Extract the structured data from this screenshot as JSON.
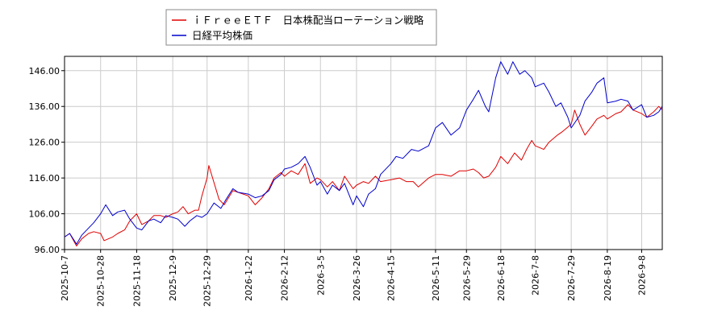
{
  "chart_data": {
    "type": "line",
    "title": "",
    "xlabel": "",
    "ylabel": "",
    "x_range": [
      "2025-10-07",
      "2026-09-20"
    ],
    "ylim": [
      96,
      150
    ],
    "grid": true,
    "legend_position": "top-left",
    "yticks": [
      "96.00",
      "106.00",
      "116.00",
      "126.00",
      "136.00",
      "146.00"
    ],
    "xticks": [
      "2025-10-7",
      "2025-10-28",
      "2025-11-18",
      "2025-12-9",
      "2025-12-29",
      "2026-1-22",
      "2026-2-12",
      "2026-3-5",
      "2026-3-26",
      "2026-4-15",
      "2026-5-11",
      "2026-5-29",
      "2026-6-18",
      "2026-7-8",
      "2026-7-29",
      "2026-8-19",
      "2026-9-8"
    ],
    "series": [
      {
        "name": "ｉＦｒｅｅＥＴＦ　日本株配当ローテーション戦略",
        "color": "#e00000",
        "points": [
          [
            "2025-10-07",
            99.5
          ],
          [
            "2025-10-10",
            100.5
          ],
          [
            "2025-10-14",
            97.0
          ],
          [
            "2025-10-17",
            99.0
          ],
          [
            "2025-10-21",
            100.5
          ],
          [
            "2025-10-24",
            101.0
          ],
          [
            "2025-10-28",
            100.5
          ],
          [
            "2025-10-30",
            98.5
          ],
          [
            "2025-11-04",
            99.5
          ],
          [
            "2025-11-07",
            100.5
          ],
          [
            "2025-11-11",
            101.5
          ],
          [
            "2025-11-14",
            104.0
          ],
          [
            "2025-11-18",
            106.0
          ],
          [
            "2025-11-21",
            103.0
          ],
          [
            "2025-11-25",
            104.0
          ],
          [
            "2025-11-28",
            105.5
          ],
          [
            "2025-12-02",
            105.5
          ],
          [
            "2025-12-05",
            105.0
          ],
          [
            "2025-12-09",
            106.0
          ],
          [
            "2025-12-12",
            106.5
          ],
          [
            "2025-12-15",
            108.0
          ],
          [
            "2025-12-18",
            106.0
          ],
          [
            "2025-12-22",
            107.0
          ],
          [
            "2025-12-24",
            107.0
          ],
          [
            "2025-12-26",
            111.0
          ],
          [
            "2025-12-29",
            116.0
          ],
          [
            "2025-12-30",
            119.5
          ],
          [
            "2026-01-05",
            110.0
          ],
          [
            "2026-01-08",
            108.5
          ],
          [
            "2026-01-13",
            112.5
          ],
          [
            "2026-01-16",
            112.0
          ],
          [
            "2026-01-22",
            111.0
          ],
          [
            "2026-01-26",
            108.5
          ],
          [
            "2026-01-30",
            110.5
          ],
          [
            "2026-02-03",
            113.0
          ],
          [
            "2026-02-06",
            116.0
          ],
          [
            "2026-02-10",
            117.5
          ],
          [
            "2026-02-12",
            116.5
          ],
          [
            "2026-02-16",
            118.0
          ],
          [
            "2026-02-20",
            117.0
          ],
          [
            "2026-02-24",
            120.0
          ],
          [
            "2026-02-27",
            114.5
          ],
          [
            "2026-03-03",
            116.0
          ],
          [
            "2026-03-05",
            115.5
          ],
          [
            "2026-03-09",
            113.5
          ],
          [
            "2026-03-12",
            115.0
          ],
          [
            "2026-03-16",
            112.5
          ],
          [
            "2026-03-19",
            116.5
          ],
          [
            "2026-03-24",
            113.0
          ],
          [
            "2026-03-26",
            114.0
          ],
          [
            "2026-03-30",
            115.0
          ],
          [
            "2026-04-02",
            114.5
          ],
          [
            "2026-04-06",
            116.5
          ],
          [
            "2026-04-09",
            115.0
          ],
          [
            "2026-04-15",
            115.5
          ],
          [
            "2026-04-20",
            116.0
          ],
          [
            "2026-04-24",
            115.0
          ],
          [
            "2026-04-28",
            115.0
          ],
          [
            "2026-05-01",
            113.5
          ],
          [
            "2026-05-07",
            116.0
          ],
          [
            "2026-05-11",
            117.0
          ],
          [
            "2026-05-15",
            117.0
          ],
          [
            "2026-05-20",
            116.5
          ],
          [
            "2026-05-25",
            118.0
          ],
          [
            "2026-05-29",
            118.0
          ],
          [
            "2026-06-02",
            118.5
          ],
          [
            "2026-06-05",
            117.5
          ],
          [
            "2026-06-08",
            116.0
          ],
          [
            "2026-06-11",
            116.5
          ],
          [
            "2026-06-15",
            119.0
          ],
          [
            "2026-06-18",
            122.0
          ],
          [
            "2026-06-22",
            120.0
          ],
          [
            "2026-06-26",
            123.0
          ],
          [
            "2026-06-30",
            121.0
          ],
          [
            "2026-07-03",
            124.0
          ],
          [
            "2026-07-06",
            126.5
          ],
          [
            "2026-07-08",
            125.0
          ],
          [
            "2026-07-13",
            124.0
          ],
          [
            "2026-07-16",
            126.0
          ],
          [
            "2026-07-21",
            128.0
          ],
          [
            "2026-07-24",
            129.0
          ],
          [
            "2026-07-29",
            131.0
          ],
          [
            "2026-07-31",
            135.0
          ],
          [
            "2026-08-03",
            131.0
          ],
          [
            "2026-08-06",
            128.0
          ],
          [
            "2026-08-10",
            130.5
          ],
          [
            "2026-08-13",
            132.5
          ],
          [
            "2026-08-17",
            133.5
          ],
          [
            "2026-08-19",
            132.5
          ],
          [
            "2026-08-24",
            134.0
          ],
          [
            "2026-08-27",
            134.5
          ],
          [
            "2026-08-31",
            136.5
          ],
          [
            "2026-09-03",
            135.0
          ],
          [
            "2026-09-08",
            134.0
          ],
          [
            "2026-09-11",
            133.0
          ],
          [
            "2026-09-15",
            134.5
          ],
          [
            "2026-09-18",
            136.0
          ],
          [
            "2026-09-20",
            135.0
          ]
        ]
      },
      {
        "name": "日経平均株価",
        "color": "#0000cc",
        "points": [
          [
            "2025-10-07",
            99.5
          ],
          [
            "2025-10-10",
            100.5
          ],
          [
            "2025-10-14",
            97.5
          ],
          [
            "2025-10-17",
            100.0
          ],
          [
            "2025-10-21",
            102.0
          ],
          [
            "2025-10-24",
            103.5
          ],
          [
            "2025-10-28",
            106.0
          ],
          [
            "2025-10-31",
            108.5
          ],
          [
            "2025-11-04",
            105.5
          ],
          [
            "2025-11-07",
            106.5
          ],
          [
            "2025-11-11",
            107.0
          ],
          [
            "2025-11-14",
            104.5
          ],
          [
            "2025-11-18",
            102.0
          ],
          [
            "2025-11-21",
            101.5
          ],
          [
            "2025-11-25",
            104.0
          ],
          [
            "2025-11-28",
            104.5
          ],
          [
            "2025-12-02",
            103.5
          ],
          [
            "2025-12-05",
            105.5
          ],
          [
            "2025-12-09",
            105.0
          ],
          [
            "2025-12-12",
            104.5
          ],
          [
            "2025-12-16",
            102.5
          ],
          [
            "2025-12-19",
            104.0
          ],
          [
            "2025-12-23",
            105.5
          ],
          [
            "2025-12-26",
            105.0
          ],
          [
            "2025-12-29",
            106.0
          ],
          [
            "2026-01-02",
            109.0
          ],
          [
            "2026-01-06",
            107.5
          ],
          [
            "2026-01-09",
            110.0
          ],
          [
            "2026-01-13",
            113.0
          ],
          [
            "2026-01-16",
            112.0
          ],
          [
            "2026-01-22",
            111.5
          ],
          [
            "2026-01-26",
            110.5
          ],
          [
            "2026-01-30",
            111.0
          ],
          [
            "2026-02-03",
            112.5
          ],
          [
            "2026-02-06",
            115.5
          ],
          [
            "2026-02-10",
            117.0
          ],
          [
            "2026-02-12",
            118.5
          ],
          [
            "2026-02-16",
            119.0
          ],
          [
            "2026-02-20",
            120.0
          ],
          [
            "2026-02-24",
            122.0
          ],
          [
            "2026-02-27",
            119.0
          ],
          [
            "2026-03-03",
            114.0
          ],
          [
            "2026-03-05",
            115.0
          ],
          [
            "2026-03-09",
            111.5
          ],
          [
            "2026-03-12",
            114.0
          ],
          [
            "2026-03-16",
            112.5
          ],
          [
            "2026-03-19",
            114.5
          ],
          [
            "2026-03-24",
            108.5
          ],
          [
            "2026-03-26",
            111.0
          ],
          [
            "2026-03-30",
            108.0
          ],
          [
            "2026-04-02",
            111.5
          ],
          [
            "2026-04-06",
            113.0
          ],
          [
            "2026-04-09",
            117.0
          ],
          [
            "2026-04-15",
            120.0
          ],
          [
            "2026-04-18",
            122.0
          ],
          [
            "2026-04-22",
            121.5
          ],
          [
            "2026-04-27",
            124.0
          ],
          [
            "2026-05-01",
            123.5
          ],
          [
            "2026-05-07",
            125.0
          ],
          [
            "2026-05-11",
            130.0
          ],
          [
            "2026-05-15",
            131.5
          ],
          [
            "2026-05-20",
            128.0
          ],
          [
            "2026-05-25",
            130.0
          ],
          [
            "2026-05-29",
            135.0
          ],
          [
            "2026-06-02",
            138.0
          ],
          [
            "2026-06-05",
            140.5
          ],
          [
            "2026-06-09",
            136.0
          ],
          [
            "2026-06-11",
            134.5
          ],
          [
            "2026-06-15",
            144.0
          ],
          [
            "2026-06-18",
            148.5
          ],
          [
            "2026-06-22",
            145.0
          ],
          [
            "2026-06-25",
            148.5
          ],
          [
            "2026-06-29",
            145.0
          ],
          [
            "2026-07-02",
            146.0
          ],
          [
            "2026-07-06",
            144.0
          ],
          [
            "2026-07-08",
            141.5
          ],
          [
            "2026-07-13",
            142.5
          ],
          [
            "2026-07-16",
            140.0
          ],
          [
            "2026-07-20",
            136.0
          ],
          [
            "2026-07-23",
            137.0
          ],
          [
            "2026-07-27",
            133.0
          ],
          [
            "2026-07-29",
            130.0
          ],
          [
            "2026-08-03",
            133.5
          ],
          [
            "2026-08-06",
            137.5
          ],
          [
            "2026-08-10",
            140.0
          ],
          [
            "2026-08-13",
            142.5
          ],
          [
            "2026-08-17",
            144.0
          ],
          [
            "2026-08-19",
            137.0
          ],
          [
            "2026-08-24",
            137.5
          ],
          [
            "2026-08-27",
            138.0
          ],
          [
            "2026-08-31",
            137.5
          ],
          [
            "2026-09-03",
            135.0
          ],
          [
            "2026-09-08",
            136.5
          ],
          [
            "2026-09-11",
            133.0
          ],
          [
            "2026-09-15",
            133.5
          ],
          [
            "2026-09-18",
            134.5
          ],
          [
            "2026-09-20",
            136.0
          ]
        ]
      }
    ]
  }
}
